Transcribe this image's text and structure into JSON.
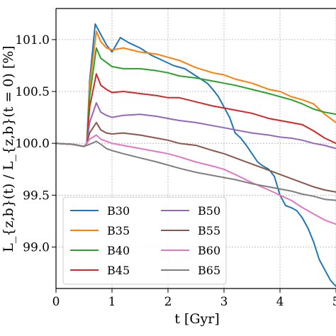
{
  "chart_data": {
    "type": "line",
    "xlabel": "t [Gyr]",
    "ylabel": "L_{z,b}(t) / L_{z,b}(t = 0) [%]",
    "xlim": [
      0,
      5
    ],
    "ylim": [
      98.6,
      101.3
    ],
    "xticks": [
      "0",
      "1",
      "2",
      "3",
      "4",
      "5"
    ],
    "yticks": [
      "99.0",
      "99.5",
      "100.0",
      "100.5",
      "101.0"
    ],
    "grid": true,
    "legend_position": "lower-left",
    "series": [
      {
        "name": "B30",
        "color": "#1f77b4",
        "x": [
          0,
          0.3,
          0.5,
          0.55,
          0.6,
          0.7,
          0.8,
          0.9,
          1.0,
          1.15,
          1.3,
          1.5,
          1.7,
          1.9,
          2.1,
          2.3,
          2.5,
          2.7,
          2.8,
          2.9,
          3.0,
          3.1,
          3.2,
          3.3,
          3.4,
          3.5,
          3.6,
          3.7,
          3.8,
          3.9,
          4.0,
          4.1,
          4.2,
          4.3,
          4.4,
          4.5,
          4.6,
          4.7,
          4.8,
          4.9,
          5.0
        ],
        "y": [
          100.0,
          99.99,
          99.97,
          100.0,
          100.6,
          101.15,
          101.05,
          100.95,
          100.88,
          101.02,
          100.97,
          100.92,
          100.85,
          100.8,
          100.75,
          100.72,
          100.65,
          100.58,
          100.52,
          100.45,
          100.35,
          100.25,
          100.1,
          100.05,
          99.98,
          99.9,
          99.82,
          99.78,
          99.75,
          99.68,
          99.5,
          99.4,
          99.38,
          99.35,
          99.28,
          99.18,
          99.05,
          98.88,
          98.78,
          98.68,
          98.62
        ]
      },
      {
        "name": "B35",
        "color": "#ff7f0e",
        "x": [
          0,
          0.3,
          0.5,
          0.55,
          0.6,
          0.72,
          0.8,
          0.9,
          1.0,
          1.2,
          1.5,
          1.8,
          2.0,
          2.2,
          2.5,
          2.8,
          3.0,
          3.2,
          3.5,
          3.8,
          4.0,
          4.2,
          4.4,
          4.6,
          4.8,
          5.0
        ],
        "y": [
          100.0,
          99.99,
          99.97,
          100.0,
          100.55,
          101.08,
          100.98,
          100.92,
          100.9,
          100.92,
          100.88,
          100.86,
          100.83,
          100.8,
          100.73,
          100.68,
          100.66,
          100.62,
          100.58,
          100.52,
          100.5,
          100.45,
          100.42,
          100.38,
          100.28,
          100.2
        ]
      },
      {
        "name": "B40",
        "color": "#2ca02c",
        "x": [
          0,
          0.3,
          0.5,
          0.55,
          0.6,
          0.72,
          0.8,
          0.9,
          1.0,
          1.2,
          1.5,
          1.8,
          2.0,
          2.2,
          2.5,
          2.8,
          3.0,
          3.2,
          3.5,
          3.8,
          4.0,
          4.2,
          4.4,
          4.6,
          4.8,
          5.0
        ],
        "y": [
          100.0,
          99.99,
          99.97,
          100.0,
          100.45,
          100.92,
          100.82,
          100.78,
          100.74,
          100.72,
          100.72,
          100.7,
          100.68,
          100.65,
          100.63,
          100.6,
          100.58,
          100.56,
          100.52,
          100.48,
          100.45,
          100.42,
          100.38,
          100.33,
          100.3,
          100.28
        ]
      },
      {
        "name": "B45",
        "color": "#d62728",
        "x": [
          0,
          0.3,
          0.5,
          0.55,
          0.6,
          0.72,
          0.8,
          0.9,
          1.0,
          1.2,
          1.5,
          1.8,
          2.0,
          2.2,
          2.5,
          2.8,
          3.0,
          3.2,
          3.5,
          3.8,
          4.0,
          4.2,
          4.4,
          4.6,
          4.8,
          5.0
        ],
        "y": [
          100.0,
          99.99,
          99.97,
          100.0,
          100.35,
          100.67,
          100.56,
          100.52,
          100.49,
          100.5,
          100.48,
          100.46,
          100.44,
          100.44,
          100.4,
          100.36,
          100.34,
          100.32,
          100.29,
          100.24,
          100.22,
          100.2,
          100.18,
          100.12,
          100.05,
          100.0
        ]
      },
      {
        "name": "B50",
        "color": "#9467bd",
        "x": [
          0,
          0.3,
          0.5,
          0.55,
          0.6,
          0.72,
          0.8,
          0.9,
          1.0,
          1.2,
          1.5,
          1.8,
          2.0,
          2.2,
          2.5,
          2.8,
          3.0,
          3.2,
          3.5,
          3.8,
          4.0,
          4.2,
          4.4,
          4.6,
          4.8,
          5.0
        ],
        "y": [
          100.0,
          99.99,
          99.97,
          100.0,
          100.2,
          100.39,
          100.3,
          100.27,
          100.25,
          100.27,
          100.28,
          100.26,
          100.24,
          100.22,
          100.2,
          100.17,
          100.15,
          100.13,
          100.1,
          100.08,
          100.06,
          100.05,
          100.03,
          100.0,
          99.98,
          99.95
        ]
      },
      {
        "name": "B55",
        "color": "#8c564b",
        "x": [
          0,
          0.3,
          0.5,
          0.55,
          0.6,
          0.72,
          0.8,
          0.9,
          1.0,
          1.2,
          1.5,
          1.8,
          2.0,
          2.2,
          2.5,
          2.8,
          3.0,
          3.2,
          3.5,
          3.8,
          4.0,
          4.2,
          4.4,
          4.6,
          4.8,
          5.0
        ],
        "y": [
          100.0,
          99.99,
          99.97,
          100.0,
          100.1,
          100.2,
          100.13,
          100.1,
          100.09,
          100.1,
          100.08,
          100.05,
          100.03,
          100.0,
          99.98,
          99.93,
          99.9,
          99.86,
          99.8,
          99.74,
          99.7,
          99.66,
          99.62,
          99.58,
          99.55,
          99.53
        ]
      },
      {
        "name": "B60",
        "color": "#e377c2",
        "x": [
          0,
          0.3,
          0.5,
          0.55,
          0.6,
          0.72,
          0.8,
          0.9,
          1.0,
          1.2,
          1.5,
          1.8,
          2.0,
          2.2,
          2.5,
          2.8,
          3.0,
          3.2,
          3.5,
          3.8,
          4.0,
          4.2,
          4.4,
          4.6,
          4.8,
          5.0
        ],
        "y": [
          100.0,
          99.99,
          99.97,
          100.0,
          100.04,
          100.08,
          100.04,
          100.02,
          100.0,
          99.98,
          99.95,
          99.92,
          99.9,
          99.87,
          99.82,
          99.78,
          99.75,
          99.7,
          99.62,
          99.55,
          99.5,
          99.45,
          99.38,
          99.32,
          99.26,
          99.22
        ]
      },
      {
        "name": "B65",
        "color": "#7f7f7f",
        "x": [
          0,
          0.3,
          0.5,
          0.55,
          0.6,
          0.72,
          0.8,
          0.9,
          1.0,
          1.2,
          1.5,
          1.8,
          2.0,
          2.2,
          2.5,
          2.8,
          3.0,
          3.2,
          3.5,
          3.8,
          4.0,
          4.2,
          4.4,
          4.6,
          4.8,
          5.0
        ],
        "y": [
          100.0,
          99.99,
          99.97,
          99.98,
          99.99,
          100.02,
          99.99,
          99.95,
          99.93,
          99.9,
          99.86,
          99.82,
          99.79,
          99.76,
          99.72,
          99.69,
          99.67,
          99.65,
          99.61,
          99.58,
          99.56,
          99.54,
          99.51,
          99.49,
          99.46,
          99.45
        ]
      }
    ]
  }
}
